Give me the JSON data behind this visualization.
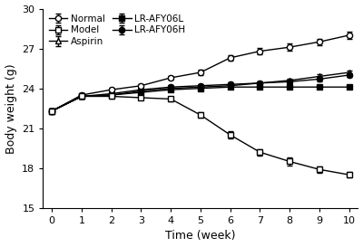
{
  "weeks": [
    0,
    1,
    2,
    3,
    4,
    5,
    6,
    7,
    8,
    9,
    10
  ],
  "normal": [
    22.3,
    23.5,
    23.9,
    24.2,
    24.8,
    25.2,
    26.3,
    26.8,
    27.1,
    27.5,
    28.0
  ],
  "normal_err": [
    0.15,
    0.15,
    0.15,
    0.15,
    0.15,
    0.2,
    0.2,
    0.25,
    0.25,
    0.25,
    0.25
  ],
  "model": [
    22.3,
    23.4,
    23.4,
    23.3,
    23.2,
    22.0,
    20.5,
    19.2,
    18.5,
    17.9,
    17.5
  ],
  "model_err": [
    0.15,
    0.15,
    0.15,
    0.15,
    0.15,
    0.2,
    0.25,
    0.25,
    0.3,
    0.25,
    0.2
  ],
  "aspirin": [
    22.3,
    23.4,
    23.5,
    23.8,
    24.0,
    24.1,
    24.2,
    24.4,
    24.6,
    24.9,
    25.2
  ],
  "aspirin_err": [
    0.15,
    0.15,
    0.15,
    0.15,
    0.15,
    0.15,
    0.15,
    0.15,
    0.15,
    0.15,
    0.15
  ],
  "lr_afy06l": [
    22.3,
    23.4,
    23.5,
    23.7,
    23.9,
    24.0,
    24.1,
    24.1,
    24.1,
    24.1,
    24.1
  ],
  "lr_afy06l_err": [
    0.15,
    0.15,
    0.15,
    0.15,
    0.15,
    0.15,
    0.15,
    0.15,
    0.15,
    0.15,
    0.15
  ],
  "lr_afy06h": [
    22.3,
    23.4,
    23.6,
    23.9,
    24.1,
    24.2,
    24.3,
    24.4,
    24.5,
    24.7,
    25.0
  ],
  "lr_afy06h_err": [
    0.15,
    0.15,
    0.15,
    0.15,
    0.15,
    0.15,
    0.15,
    0.15,
    0.15,
    0.15,
    0.15
  ],
  "ylim": [
    15,
    30
  ],
  "yticks": [
    15,
    18,
    21,
    24,
    27,
    30
  ],
  "xlabel": "Time (week)",
  "ylabel": "Body weight (g)"
}
